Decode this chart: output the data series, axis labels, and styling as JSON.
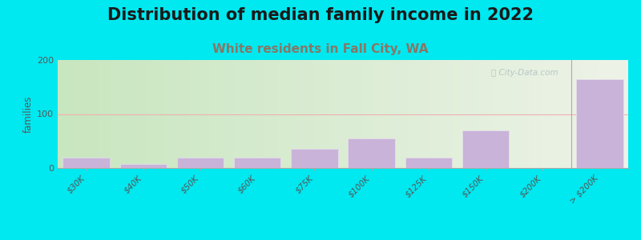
{
  "title": "Distribution of median family income in 2022",
  "subtitle": "White residents in Fall City, WA",
  "categories": [
    "$30K",
    "$40K",
    "$50K",
    "$60K",
    "$75K",
    "$100K",
    "$125K",
    "$150K",
    "$200K",
    "> $200K"
  ],
  "values": [
    20,
    7,
    20,
    20,
    35,
    55,
    20,
    70,
    0,
    165
  ],
  "bar_color": "#c9b3d9",
  "bar_edge_color": "#e8e0f0",
  "background_outer": "#00e8f0",
  "bg_left_color": "#c8e6c0",
  "bg_right_color": "#eef2e8",
  "ylabel": "families",
  "ylim": [
    0,
    200
  ],
  "yticks": [
    0,
    100,
    200
  ],
  "grid_color": "#f0b0b0",
  "title_fontsize": 15,
  "subtitle_fontsize": 11,
  "subtitle_color": "#887766",
  "watermark": "Ⓐ City-Data.com",
  "watermark_color": "#b0bfc0"
}
